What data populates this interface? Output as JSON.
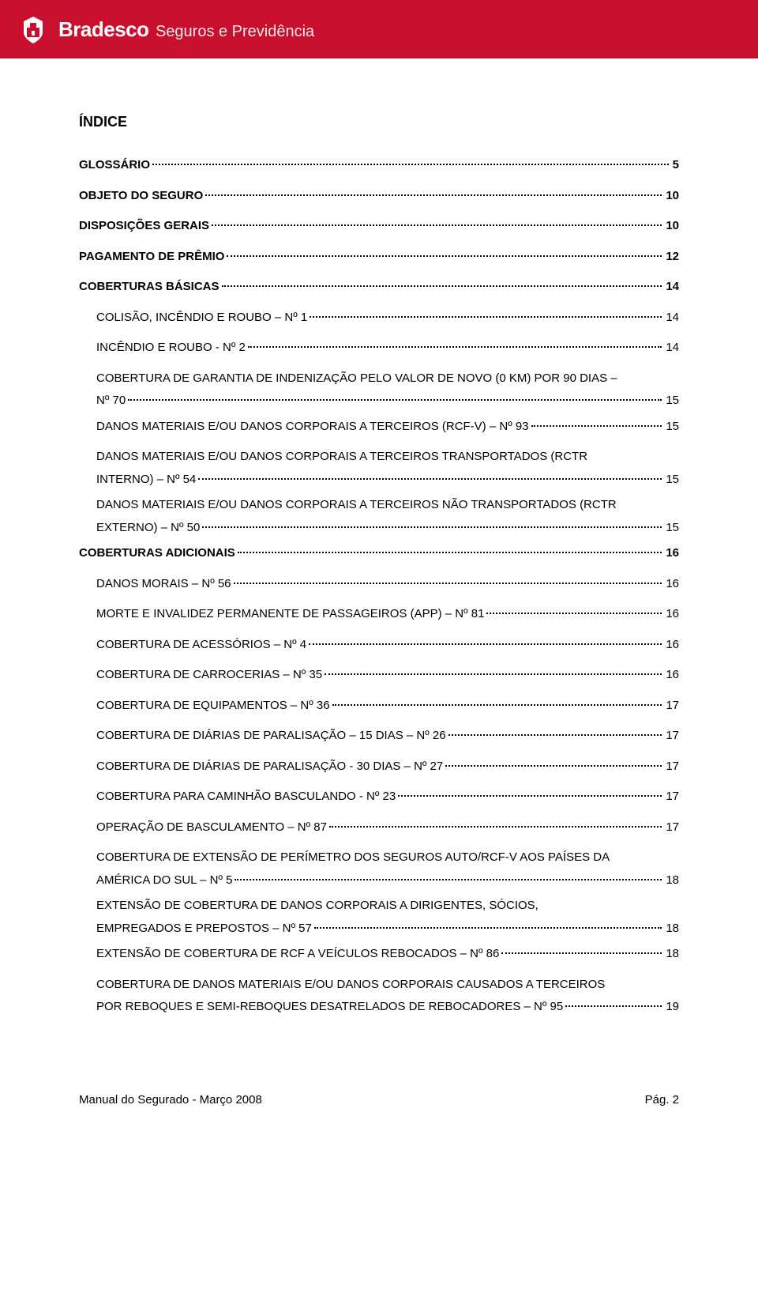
{
  "colors": {
    "banner_bg": "#c8102e",
    "banner_text": "#ffffff",
    "body_text": "#000000",
    "page_bg": "#ffffff"
  },
  "header": {
    "brand": "Bradesco",
    "sub": "Seguros e Previdência"
  },
  "index_title": "ÍNDICE",
  "toc": [
    {
      "label": "GLOSSÁRIO",
      "page": "5",
      "indent": false,
      "bold": true
    },
    {
      "label": "OBJETO DO SEGURO",
      "page": "10",
      "indent": false,
      "bold": true
    },
    {
      "label": "DISPOSIÇÕES GERAIS",
      "page": "10",
      "indent": false,
      "bold": true
    },
    {
      "label": "PAGAMENTO DE PRÊMIO",
      "page": "12",
      "indent": false,
      "bold": true
    },
    {
      "label": "COBERTURAS BÁSICAS",
      "page": "14",
      "indent": false,
      "bold": true
    },
    {
      "label": "COLISÃO, INCÊNDIO E ROUBO – Nº 1",
      "page": "14",
      "indent": true,
      "bold": false
    },
    {
      "label": "INCÊNDIO E ROUBO  - Nº 2",
      "page": "14",
      "indent": true,
      "bold": false
    },
    {
      "label_lines": [
        "COBERTURA DE GARANTIA DE INDENIZAÇÃO PELO VALOR DE NOVO (0 KM)  POR 90 DIAS –",
        "Nº 70"
      ],
      "page": "15",
      "indent": true,
      "bold": false,
      "multiline": true
    },
    {
      "label": "DANOS MATERIAIS E/OU DANOS CORPORAIS A TERCEIROS (RCF-V) – Nº 93",
      "page": "15",
      "indent": true,
      "bold": false
    },
    {
      "label_lines": [
        "DANOS MATERIAIS E/OU DANOS CORPORAIS A TERCEIROS TRANSPORTADOS (RCTR",
        "INTERNO) – Nº 54"
      ],
      "page": "15",
      "indent": true,
      "bold": false,
      "multiline": true
    },
    {
      "label_lines": [
        "DANOS MATERIAIS E/OU DANOS CORPORAIS A TERCEIROS NÃO TRANSPORTADOS (RCTR",
        "EXTERNO) – Nº 50"
      ],
      "page": "15",
      "indent": true,
      "bold": false,
      "multiline": true
    },
    {
      "label": "COBERTURAS ADICIONAIS",
      "page": "16",
      "indent": false,
      "bold": true
    },
    {
      "label": "DANOS MORAIS – Nº 56",
      "page": "16",
      "indent": true,
      "bold": false
    },
    {
      "label": "MORTE E INVALIDEZ PERMANENTE DE PASSAGEIROS (APP) – Nº 81",
      "page": "16",
      "indent": true,
      "bold": false
    },
    {
      "label": "COBERTURA  DE  ACESSÓRIOS – Nº 4",
      "page": "16",
      "indent": true,
      "bold": false
    },
    {
      "label": "COBERTURA  DE  CARROCERIAS – Nº 35",
      "page": "16",
      "indent": true,
      "bold": false
    },
    {
      "label": "COBERTURA  DE EQUIPAMENTOS – Nº 36",
      "page": "17",
      "indent": true,
      "bold": false
    },
    {
      "label": "COBERTURA DE DIÁRIAS DE PARALISAÇÃO – 15 DIAS – Nº 26",
      "page": "17",
      "indent": true,
      "bold": false
    },
    {
      "label": "COBERTURA DE DIÁRIAS DE PARALISAÇÃO - 30 DIAS – Nº 27",
      "page": "17",
      "indent": true,
      "bold": false
    },
    {
      "label": "COBERTURA PARA CAMINHÃO BASCULANDO - Nº 23",
      "page": "17",
      "indent": true,
      "bold": false
    },
    {
      "label": "OPERAÇÃO DE BASCULAMENTO – Nº 87",
      "page": "17",
      "indent": true,
      "bold": false
    },
    {
      "label_lines": [
        "COBERTURA DE EXTENSÃO DE PERÍMETRO DOS SEGUROS AUTO/RCF-V AOS PAÍSES DA",
        "AMÉRICA DO SUL – Nº 5"
      ],
      "page": "18",
      "indent": true,
      "bold": false,
      "multiline": true
    },
    {
      "label_lines": [
        "EXTENSÃO DE COBERTURA DE DANOS CORPORAIS A DIRIGENTES, SÓCIOS,",
        "EMPREGADOS E PREPOSTOS – Nº 57"
      ],
      "page": "18",
      "indent": true,
      "bold": false,
      "multiline": true
    },
    {
      "label": "EXTENSÃO DE COBERTURA DE RCF A VEÍCULOS REBOCADOS – Nº 86",
      "page": "18",
      "indent": true,
      "bold": false
    },
    {
      "label_lines": [
        "COBERTURA DE DANOS MATERIAIS E/OU DANOS CORPORAIS CAUSADOS A TERCEIROS",
        "POR REBOQUES E SEMI-REBOQUES DESATRELADOS DE REBOCADORES – Nº 95"
      ],
      "page": "19",
      "indent": true,
      "bold": false,
      "multiline": true
    }
  ],
  "footer": {
    "left": "Manual do Segurado - Março 2008",
    "right": "Pág. 2"
  }
}
